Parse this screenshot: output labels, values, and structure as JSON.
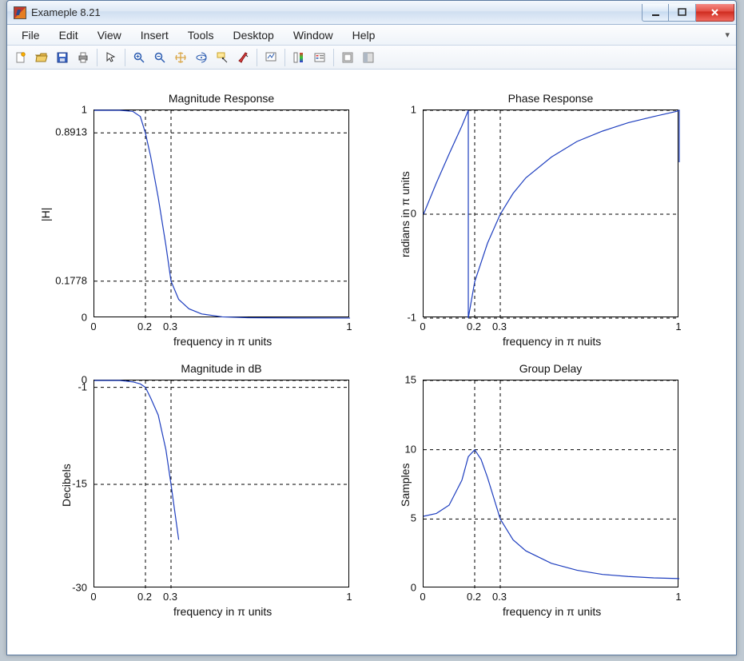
{
  "window": {
    "title": "Exameple 8.21",
    "menus": [
      "File",
      "Edit",
      "View",
      "Insert",
      "Tools",
      "Desktop",
      "Window",
      "Help"
    ]
  },
  "toolbar_icons": [
    "new-figure-icon",
    "open-icon",
    "save-icon",
    "print-icon",
    "sep",
    "pointer-icon",
    "sep",
    "zoom-in-icon",
    "zoom-out-icon",
    "pan-icon",
    "rotate3d-icon",
    "datacursor-icon",
    "brush-icon",
    "sep",
    "link-icon",
    "sep",
    "colorbar-icon",
    "legend-icon",
    "sep",
    "hide-plot-tools-icon",
    "dock-icon"
  ],
  "colors": {
    "figure_bg": "#ffffff",
    "axis": "#000000",
    "grid": "#000000",
    "series": "#1f3fbf"
  },
  "layout": {
    "title_fontsize": 14,
    "label_fontsize": 14,
    "tick_fontsize": 13,
    "panels": {
      "tl": [
        108,
        50,
        320,
        260
      ],
      "tr": [
        520,
        50,
        320,
        260
      ],
      "bl": [
        108,
        388,
        320,
        260
      ],
      "br": [
        520,
        388,
        320,
        260
      ]
    }
  },
  "p1": {
    "title": "Magnitude Response",
    "xlabel": "frequency in π units",
    "ylabel": "|H|",
    "xlim": [
      0,
      1
    ],
    "ylim": [
      0,
      1
    ],
    "xticks": [
      0,
      0.2,
      0.3,
      1
    ],
    "xtick_labels": [
      "0",
      "0.2",
      "0.3",
      "1"
    ],
    "yticks": [
      0,
      0.1778,
      0.8913,
      1
    ],
    "ytick_labels": [
      "0",
      "0.1778",
      "0.8913",
      "1"
    ],
    "gridx": [
      0.2,
      0.3
    ],
    "gridy": [
      0.1778,
      0.8913,
      1
    ],
    "series": {
      "x": [
        0,
        0.1,
        0.15,
        0.18,
        0.2,
        0.22,
        0.25,
        0.28,
        0.3,
        0.33,
        0.37,
        0.42,
        0.5,
        0.6,
        0.8,
        1.0
      ],
      "y": [
        1,
        1,
        0.995,
        0.97,
        0.89,
        0.78,
        0.58,
        0.35,
        0.178,
        0.09,
        0.045,
        0.02,
        0.006,
        0.002,
        0.0005,
        0.0003
      ]
    }
  },
  "p2": {
    "title": "Phase Response",
    "xlabel": "frequency in π nuits",
    "ylabel": "radians in π units",
    "xlim": [
      0,
      1
    ],
    "ylim": [
      -1,
      1
    ],
    "xticks": [
      0,
      0.2,
      0.3,
      1
    ],
    "xtick_labels": [
      "0",
      "0.2",
      "0.3",
      "1"
    ],
    "yticks": [
      -1,
      0,
      1
    ],
    "ytick_labels": [
      "-1",
      "0",
      "1"
    ],
    "gridx": [
      0.2,
      0.3
    ],
    "gridy": [
      -1,
      0,
      1
    ],
    "series": {
      "x": [
        0.0,
        0.05,
        0.1,
        0.15,
        0.175,
        0.175,
        0.2,
        0.25,
        0.3,
        0.35,
        0.4,
        0.5,
        0.6,
        0.7,
        0.8,
        0.9,
        0.99,
        1.0,
        1.0
      ],
      "y": [
        0.0,
        0.3,
        0.58,
        0.85,
        1.0,
        -1.0,
        -0.65,
        -0.28,
        0.0,
        0.2,
        0.35,
        0.55,
        0.7,
        0.8,
        0.88,
        0.94,
        0.99,
        1.0,
        0.5
      ]
    }
  },
  "p3": {
    "title": "Magnitude in dB",
    "xlabel": "frequency in π units",
    "ylabel": "Decibels",
    "xlim": [
      0,
      1
    ],
    "ylim": [
      -30,
      0
    ],
    "xticks": [
      0,
      0.2,
      0.3,
      1
    ],
    "xtick_labels": [
      "0",
      "0.2",
      "0.3",
      "1"
    ],
    "yticks": [
      -30,
      -15,
      -1,
      0
    ],
    "ytick_labels": [
      "-30",
      "-15",
      "-1",
      "0"
    ],
    "gridx": [
      0.2,
      0.3
    ],
    "gridy": [
      -15,
      -1,
      0
    ],
    "series": {
      "x": [
        0,
        0.1,
        0.15,
        0.18,
        0.2,
        0.22,
        0.25,
        0.28,
        0.3,
        0.33
      ],
      "y": [
        0,
        0,
        -0.2,
        -0.5,
        -1.0,
        -2.5,
        -5.0,
        -10,
        -15,
        -23
      ]
    }
  },
  "p4": {
    "title": "Group Delay",
    "xlabel": "frequency in π units",
    "ylabel": "Samples",
    "xlim": [
      0,
      1
    ],
    "ylim": [
      0,
      15
    ],
    "xticks": [
      0,
      0.2,
      0.3,
      1
    ],
    "xtick_labels": [
      "0",
      "0.2",
      "0.3",
      "1"
    ],
    "yticks": [
      0,
      5,
      10,
      15
    ],
    "ytick_labels": [
      "0",
      "5",
      "10",
      "15"
    ],
    "gridx": [
      0.2,
      0.3
    ],
    "gridy": [
      5,
      10,
      15
    ],
    "series": {
      "x": [
        0,
        0.05,
        0.1,
        0.15,
        0.175,
        0.2,
        0.225,
        0.25,
        0.3,
        0.35,
        0.4,
        0.5,
        0.6,
        0.7,
        0.8,
        0.9,
        1.0
      ],
      "y": [
        5.2,
        5.4,
        6.0,
        7.8,
        9.5,
        10.0,
        9.3,
        8.0,
        5.0,
        3.5,
        2.7,
        1.8,
        1.3,
        1.0,
        0.85,
        0.75,
        0.7
      ]
    }
  }
}
